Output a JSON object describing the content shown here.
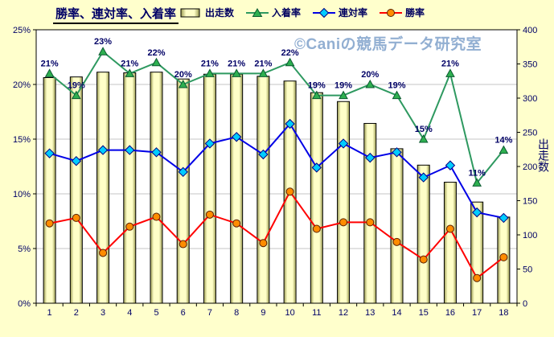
{
  "window": {
    "title": "勝率、連対率、入着率"
  },
  "legend": {
    "items": [
      {
        "label": "出走数"
      },
      {
        "label": "入着率"
      },
      {
        "label": "連対率"
      },
      {
        "label": "勝率"
      }
    ]
  },
  "watermark": "©Caniの競馬データ研究室",
  "chart_data": {
    "type": "combo-bar-line",
    "title": "勝率、連対率、入着率",
    "categories": [
      "1",
      "2",
      "3",
      "4",
      "5",
      "6",
      "7",
      "8",
      "9",
      "10",
      "11",
      "12",
      "13",
      "14",
      "15",
      "16",
      "17",
      "18"
    ],
    "series": [
      {
        "name": "出走数",
        "type": "bar",
        "axis": "right",
        "values": [
          330,
          331,
          338,
          337,
          338,
          328,
          335,
          335,
          332,
          325,
          308,
          295,
          263,
          226,
          202,
          177,
          148,
          126
        ],
        "fill": "#FFFFC8",
        "edge_shade": "#9A9A50",
        "border": "#000000"
      },
      {
        "name": "入着率",
        "type": "line",
        "axis": "left",
        "marker": "triangle",
        "values": [
          21,
          19,
          23,
          21,
          22,
          20,
          21,
          21,
          21,
          22,
          19,
          19,
          20,
          19,
          15,
          21,
          11,
          14
        ],
        "point_labels": [
          "21%",
          "19%",
          "23%",
          "21%",
          "22%",
          "20%",
          "21%",
          "21%",
          "21%",
          "22%",
          "19%",
          "19%",
          "20%",
          "19%",
          "15%",
          "21%",
          "11%",
          "14%"
        ],
        "color": "#2E9960",
        "marker_fill": "#2EB050",
        "marker_stroke": "#0B5A30"
      },
      {
        "name": "連対率",
        "type": "line",
        "axis": "left",
        "marker": "diamond",
        "values": [
          13.7,
          13.0,
          14.0,
          14.0,
          13.8,
          12.0,
          14.6,
          15.2,
          13.6,
          16.4,
          12.4,
          14.6,
          13.3,
          13.8,
          11.5,
          12.6,
          8.3,
          7.8
        ],
        "color": "#0000E6",
        "marker_fill": "#00CCFF",
        "marker_stroke": "#000080"
      },
      {
        "name": "勝率",
        "type": "line",
        "axis": "left",
        "marker": "circle",
        "values": [
          7.3,
          7.8,
          4.6,
          7.0,
          7.9,
          5.4,
          8.1,
          7.3,
          5.5,
          10.2,
          6.8,
          7.4,
          7.4,
          5.6,
          4.0,
          6.8,
          2.3,
          4.2
        ],
        "color": "#FF0000",
        "marker_fill": "#FF8C00",
        "marker_stroke": "#5A2000"
      }
    ],
    "left_axis": {
      "min": 0,
      "max": 25,
      "step": 5,
      "ticks": [
        "0%",
        "5%",
        "10%",
        "15%",
        "20%",
        "25%"
      ]
    },
    "right_axis": {
      "min": 0,
      "max": 400,
      "step": 50,
      "ticks": [
        "0",
        "50",
        "100",
        "150",
        "200",
        "250",
        "300",
        "350",
        "400"
      ],
      "title": "出走数"
    },
    "grid": true,
    "legend_position": "top",
    "colors": {
      "background": "#FFFFCC",
      "plot_background": "#FFFFFF",
      "gridline": "#C6C6C6",
      "axis_text": "#000066",
      "watermark_text": "#92AFD2"
    }
  }
}
